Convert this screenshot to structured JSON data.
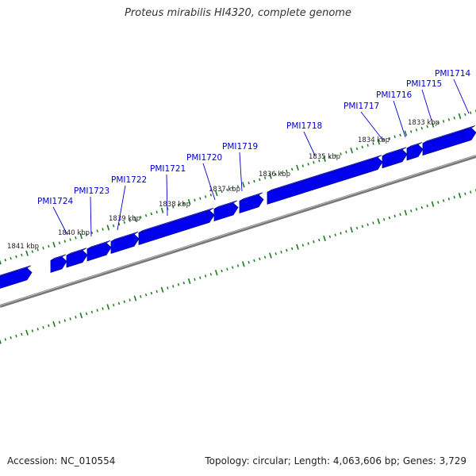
{
  "title": "Proteus mirabilis HI4320, complete genome",
  "accession_text": "Accession: NC_010554",
  "summary_text": "Topology: circular; Length: 4,063,606 bp; Genes: 3,729",
  "colors": {
    "gene_fill": "#0000ee",
    "gene_dark": "#000099",
    "backbone": "#777777",
    "tick": "#1a7a1a",
    "gene_label": "#0000cc",
    "kbp_label": "#222222",
    "leader": "#0000cc"
  },
  "kbp_labels": [
    "1841 kbp",
    "1840 kbp",
    "1839 kbp",
    "1838 kbp",
    "1837 kbp",
    "1836 kbp",
    "1835 kbp",
    "1834 kbp",
    "1833 kbp"
  ],
  "gene_labels": [
    "PMI1724",
    "PMI1723",
    "PMI1722",
    "PMI1721",
    "PMI1720",
    "PMI1719",
    "PMI1718",
    "PMI1717",
    "PMI1716",
    "PMI1715",
    "PMI1714"
  ]
}
